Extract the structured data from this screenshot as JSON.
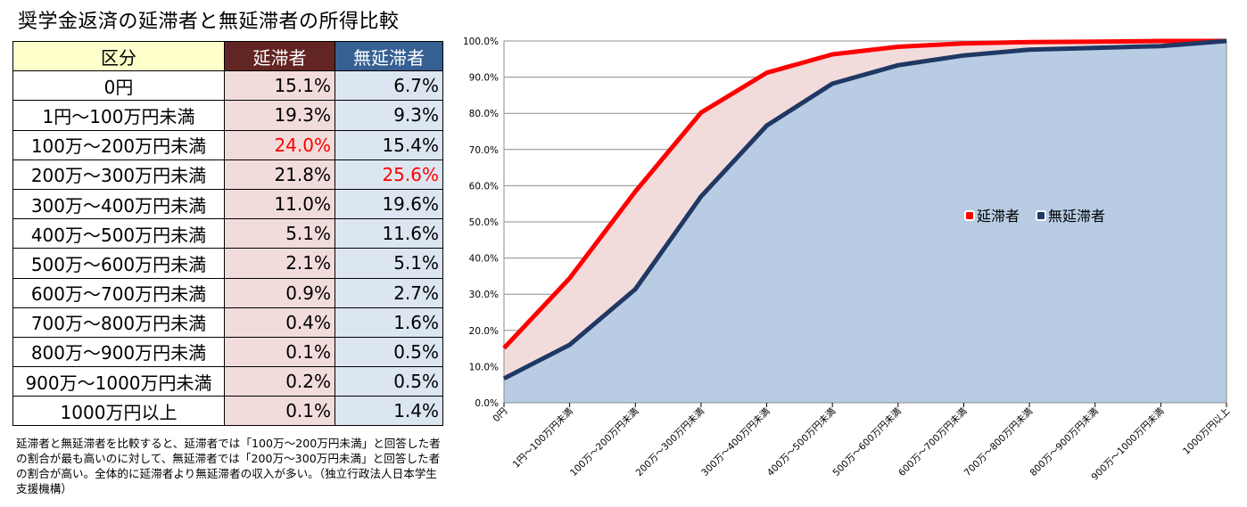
{
  "title": "奨学金返済の延滞者と無延滞者の所得比較",
  "table": {
    "headers": [
      "区分",
      "延滞者",
      "無延滞者"
    ],
    "rows": [
      {
        "category": "0円",
        "delinquent": "15.1%",
        "non_delinquent": "6.7%"
      },
      {
        "category": "1円～100万円未満",
        "delinquent": "19.3%",
        "non_delinquent": "9.3%"
      },
      {
        "category": "100万～200万円未満",
        "delinquent": "24.0%",
        "non_delinquent": "15.4%",
        "highlight": "delinquent"
      },
      {
        "category": "200万～300万円未満",
        "delinquent": "21.8%",
        "non_delinquent": "25.6%",
        "highlight": "non_delinquent"
      },
      {
        "category": "300万～400万円未満",
        "delinquent": "11.0%",
        "non_delinquent": "19.6%"
      },
      {
        "category": "400万～500万円未満",
        "delinquent": "5.1%",
        "non_delinquent": "11.6%"
      },
      {
        "category": "500万～600万円未満",
        "delinquent": "2.1%",
        "non_delinquent": "5.1%"
      },
      {
        "category": "600万～700万円未満",
        "delinquent": "0.9%",
        "non_delinquent": "2.7%"
      },
      {
        "category": "700万～800万円未満",
        "delinquent": "0.4%",
        "non_delinquent": "1.6%"
      },
      {
        "category": "800万～900万円未満",
        "delinquent": "0.1%",
        "non_delinquent": "0.5%"
      },
      {
        "category": "900万～1000万円未満",
        "delinquent": "0.2%",
        "non_delinquent": "0.5%"
      },
      {
        "category": "1000万円以上",
        "delinquent": "0.1%",
        "non_delinquent": "1.4%"
      }
    ]
  },
  "note": "延滞者と無延滞者を比較すると、延滞者では「100万～200万円未満」と回答した者の割合が最も高いのに対して、無延滞者では「200万～300万円未満」と回答した者の割合が高い。全体的に延滞者より無延滞者の収入が多い。（独立行政法人日本学生支援機構）",
  "colors": {
    "delinquent_line": "#ff0000",
    "delinquent_fill": "#f2dcdb",
    "non_delinquent_line": "#1f3864",
    "non_delinquent_fill": "#b8cce4",
    "highlight_text": "#ff0000",
    "header_delinquent_bg": "#632523",
    "header_non_delinquent_bg": "#366092",
    "header_category_bg": "#ffffcc"
  },
  "chart_data": {
    "type": "area",
    "categories": [
      "0円",
      "1円～100万円未満",
      "100万～200万円未満",
      "200万～300万円未満",
      "300万～400万円未満",
      "400万～500万円未満",
      "500万～600万円未満",
      "600万～700万円未満",
      "700万～800万円未満",
      "800万～900万円未満",
      "900万～1000万円未満",
      "1000万円以上"
    ],
    "series": [
      {
        "name": "延滞者",
        "values": [
          15.1,
          34.4,
          58.4,
          80.2,
          91.2,
          96.3,
          98.4,
          99.3,
          99.7,
          99.8,
          100.0,
          100.0
        ]
      },
      {
        "name": "無延滞者",
        "values": [
          6.7,
          16.0,
          31.4,
          57.0,
          76.6,
          88.2,
          93.3,
          96.0,
          97.6,
          98.1,
          98.6,
          100.0
        ]
      }
    ],
    "yticks": [
      "0.0%",
      "10.0%",
      "20.0%",
      "30.0%",
      "40.0%",
      "50.0%",
      "60.0%",
      "70.0%",
      "80.0%",
      "90.0%",
      "100.0%"
    ],
    "ylim": [
      0,
      100
    ],
    "grid": true,
    "legend": "center-right"
  }
}
